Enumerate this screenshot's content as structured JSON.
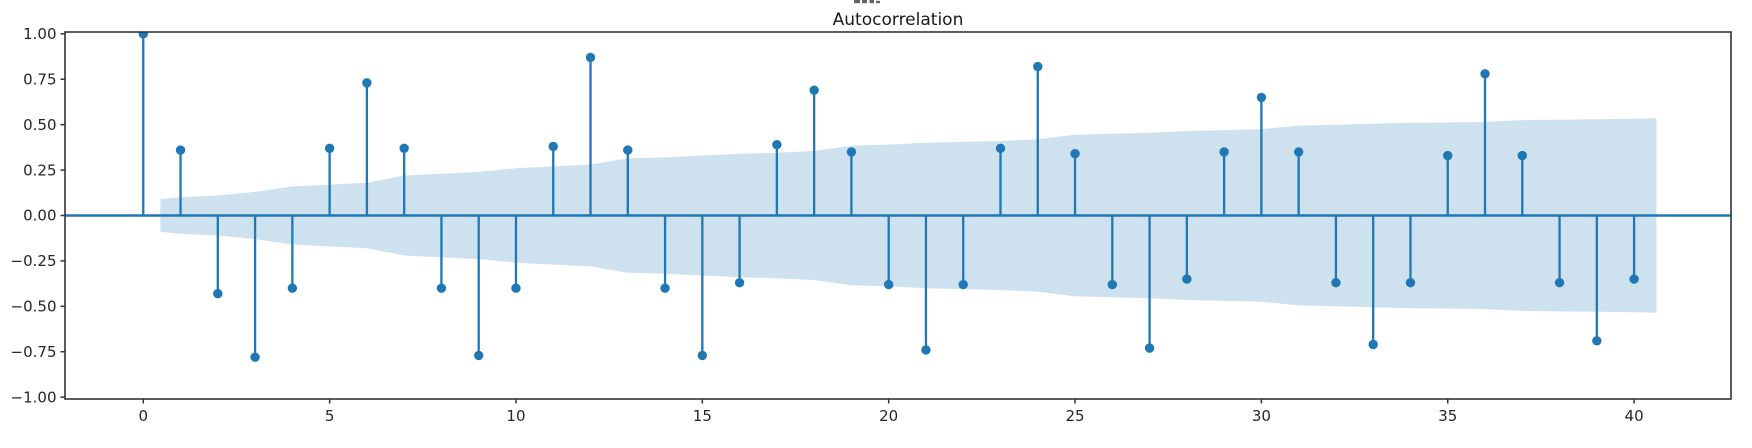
{
  "figure": {
    "title": "Autocorrelation",
    "background_color": "#ffffff",
    "note_clipped_text_at_top": "partially visible text fragment clipped by top edge above the title"
  },
  "chart_data": {
    "type": "bar",
    "subtype": "acf-stem-plot",
    "title": "Autocorrelation",
    "xlabel": "",
    "ylabel": "",
    "x": [
      0,
      1,
      2,
      3,
      4,
      5,
      6,
      7,
      8,
      9,
      10,
      11,
      12,
      13,
      14,
      15,
      16,
      17,
      18,
      19,
      20,
      21,
      22,
      23,
      24,
      25,
      26,
      27,
      28,
      29,
      30,
      31,
      32,
      33,
      34,
      35,
      36,
      37,
      38,
      39,
      40
    ],
    "values": [
      1.0,
      0.36,
      -0.43,
      -0.78,
      -0.4,
      0.37,
      0.73,
      0.37,
      -0.4,
      -0.77,
      -0.4,
      0.38,
      0.87,
      0.36,
      -0.4,
      -0.77,
      -0.37,
      0.39,
      0.69,
      0.35,
      -0.38,
      -0.74,
      -0.38,
      0.37,
      0.82,
      0.34,
      -0.38,
      -0.73,
      -0.35,
      0.35,
      0.65,
      0.35,
      -0.37,
      -0.71,
      -0.37,
      0.33,
      0.78,
      0.33,
      -0.37,
      -0.69,
      -0.35
    ],
    "confidence_band": {
      "description": "shaded confidence interval, symmetric about zero, widening with lag",
      "x": [
        0.46,
        1,
        2,
        3,
        4,
        5,
        6,
        7,
        8,
        9,
        10,
        11,
        12,
        13,
        14,
        15,
        16,
        17,
        18,
        19,
        20,
        21,
        22,
        23,
        24,
        25,
        26,
        27,
        28,
        29,
        30,
        31,
        32,
        33,
        34,
        35,
        36,
        37,
        38,
        39,
        40,
        40.6
      ],
      "upper": [
        0.09,
        0.1,
        0.11,
        0.13,
        0.16,
        0.17,
        0.18,
        0.22,
        0.23,
        0.24,
        0.26,
        0.27,
        0.28,
        0.315,
        0.32,
        0.33,
        0.34,
        0.345,
        0.355,
        0.385,
        0.39,
        0.4,
        0.405,
        0.41,
        0.42,
        0.445,
        0.45,
        0.455,
        0.465,
        0.47,
        0.475,
        0.495,
        0.5,
        0.505,
        0.51,
        0.512,
        0.515,
        0.525,
        0.528,
        0.53,
        0.533,
        0.535
      ]
    },
    "xlim": [
      -2.1,
      42.6
    ],
    "ylim": [
      -1.01,
      1.01
    ],
    "x_ticks": [
      {
        "v": 0,
        "label": "0"
      },
      {
        "v": 5,
        "label": "5"
      },
      {
        "v": 10,
        "label": "10"
      },
      {
        "v": 15,
        "label": "15"
      },
      {
        "v": 20,
        "label": "20"
      },
      {
        "v": 25,
        "label": "25"
      },
      {
        "v": 30,
        "label": "30"
      },
      {
        "v": 35,
        "label": "35"
      },
      {
        "v": 40,
        "label": "40"
      }
    ],
    "y_ticks": [
      {
        "v": 1.0,
        "label": "1.00"
      },
      {
        "v": 0.75,
        "label": "0.75"
      },
      {
        "v": 0.5,
        "label": "0.50"
      },
      {
        "v": 0.25,
        "label": "0.25"
      },
      {
        "v": 0.0,
        "label": "0.00"
      },
      {
        "v": -0.25,
        "label": "−0.25"
      },
      {
        "v": -0.5,
        "label": "−0.50"
      },
      {
        "v": -0.75,
        "label": "−0.75"
      },
      {
        "v": -1.0,
        "label": "−1.00"
      }
    ],
    "grid": false,
    "legend": null,
    "colors": {
      "stem": "#1f77b4",
      "marker": "#1f77b4",
      "zero_line": "#1f77b4",
      "band_fill": "#1f77b4",
      "band_opacity": 0.22,
      "spine": "#333333",
      "tick_text": "#262626"
    }
  }
}
